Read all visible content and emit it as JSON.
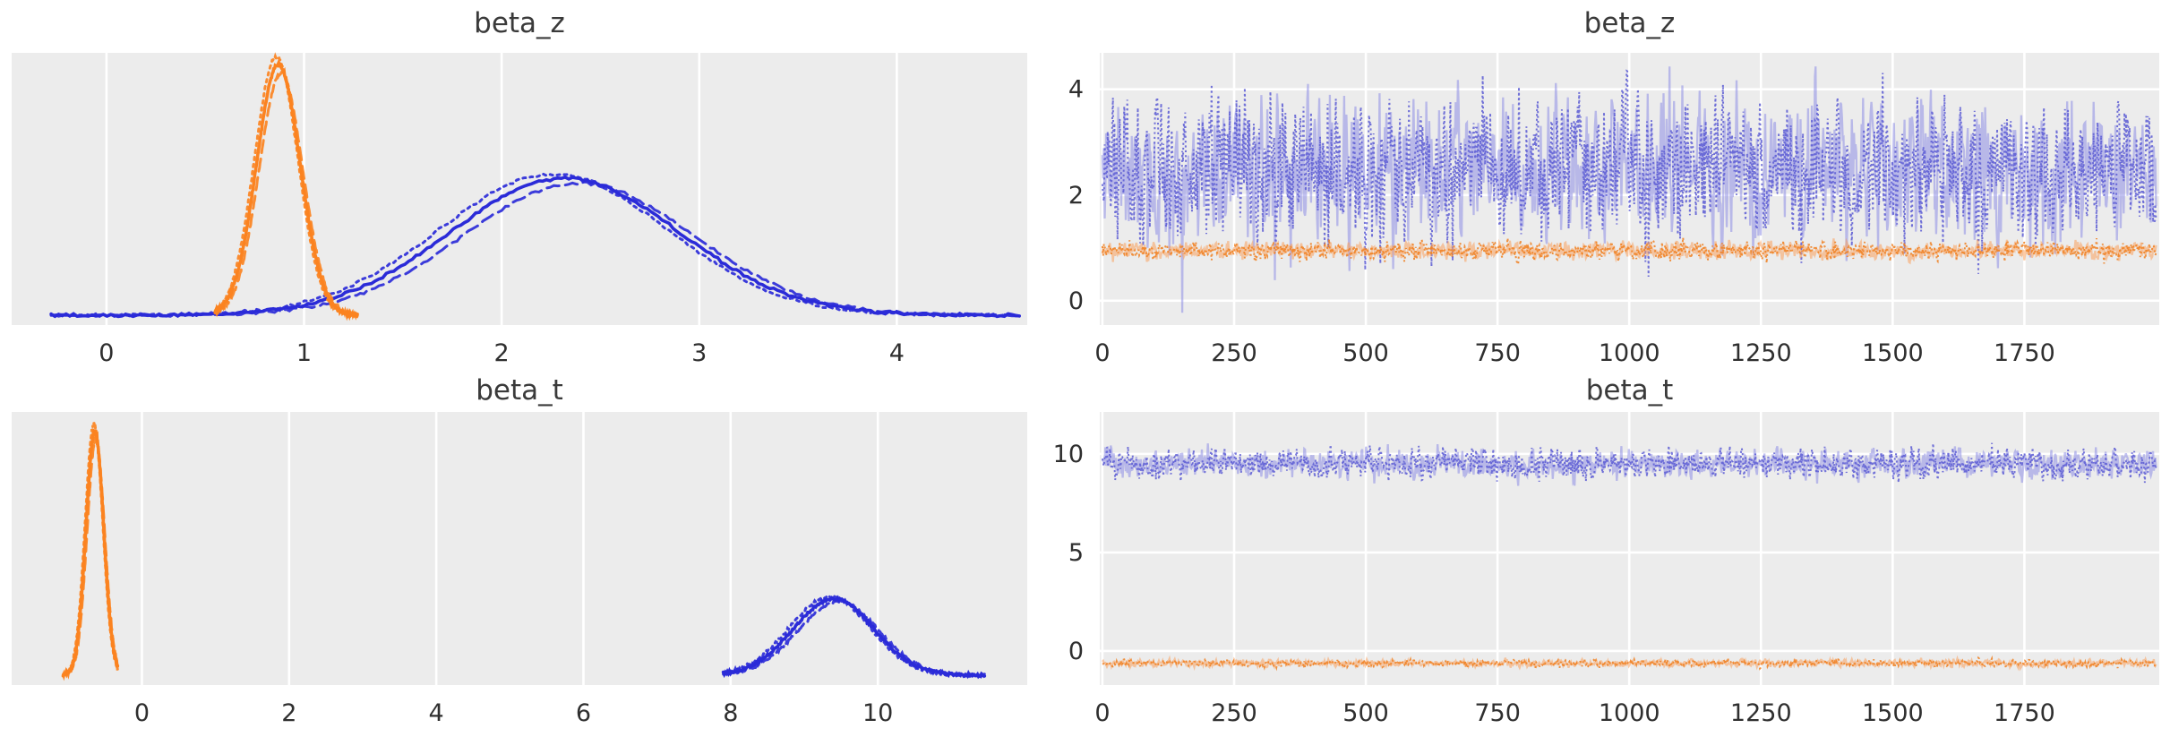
{
  "figure": {
    "background_color": "#ffffff",
    "panel_color": "#ececec",
    "grid_color": "#ffffff",
    "tick_label_color": "#2f2f2f",
    "title_color": "#3a3a3a"
  },
  "chart_data": [
    {
      "id": "beta_z_density",
      "type": "kde",
      "title": "beta_z",
      "xlabel": "",
      "ylabel": "",
      "xlim": [
        -0.48,
        4.66
      ],
      "xticks": [
        0,
        1,
        2,
        3,
        4
      ],
      "grid": "vertical-only",
      "legend": "none",
      "series": [
        {
          "name": "beta_z chain densities (wide posterior)",
          "color": "#2b2bd8",
          "mean": 2.32,
          "sd": 0.58,
          "xstart": -0.28,
          "xend": 4.62,
          "peak_frac": 0.54
        },
        {
          "name": "beta_z chain densities (narrow posterior)",
          "color": "#fb8321",
          "mean": 0.87,
          "sd": 0.11,
          "xstart": 0.55,
          "xend": 1.27,
          "peak_frac": 0.99
        }
      ]
    },
    {
      "id": "beta_z_trace",
      "type": "trace",
      "title": "beta_z",
      "xlabel": "",
      "ylabel": "",
      "xlim": [
        -5,
        2006
      ],
      "x_max": 2000,
      "xticks": [
        0,
        250,
        500,
        750,
        1000,
        1250,
        1500,
        1750
      ],
      "ylim": [
        -0.46,
        4.69
      ],
      "yticks": [
        0,
        2,
        4
      ],
      "grid": "both",
      "legend": "none",
      "series": [
        {
          "name": "beta_z sampled trace (blue chains)",
          "colors": [
            "#8e8ee6",
            "#5a5ad4"
          ],
          "mean": 2.5,
          "amp": 1.05,
          "smooth": 0.3,
          "seed": 11,
          "spike_p": 0.012,
          "spike_mag": -1.7
        },
        {
          "name": "beta_z sampled trace (orange chains)",
          "colors": [
            "#f9a05c",
            "#f07f1f"
          ],
          "mean": 0.95,
          "amp": 0.13,
          "smooth": 0.3,
          "seed": 21,
          "spike_p": 0,
          "spike_mag": 0
        }
      ]
    },
    {
      "id": "beta_t_density",
      "type": "kde",
      "title": "beta_t",
      "xlabel": "",
      "ylabel": "",
      "xlim": [
        -1.77,
        12.03
      ],
      "xticks": [
        0,
        2,
        4,
        6,
        8,
        10
      ],
      "grid": "vertical-only",
      "legend": "none",
      "series": [
        {
          "name": "beta_t chain densities (posterior near 9.4)",
          "color": "#2b2bd8",
          "mean": 9.4,
          "sd": 0.55,
          "xstart": 7.9,
          "xend": 11.45,
          "peak_frac": 0.3
        },
        {
          "name": "beta_t chain densities (posterior near -0.64)",
          "color": "#fb8321",
          "mean": -0.64,
          "sd": 0.12,
          "xstart": -1.07,
          "xend": -0.33,
          "peak_frac": 0.96
        }
      ]
    },
    {
      "id": "beta_t_trace",
      "type": "trace",
      "title": "beta_t",
      "xlabel": "",
      "ylabel": "",
      "xlim": [
        -5,
        2006
      ],
      "x_max": 2000,
      "xticks": [
        0,
        250,
        500,
        750,
        1000,
        1250,
        1500,
        1750
      ],
      "ylim": [
        -1.73,
        12.13
      ],
      "yticks": [
        0,
        5,
        10
      ],
      "grid": "both",
      "legend": "none",
      "series": [
        {
          "name": "beta_t sampled trace (blue chains)",
          "colors": [
            "#8e8ee6",
            "#5a5ad4"
          ],
          "mean": 9.5,
          "amp": 0.58,
          "smooth": 0.3,
          "seed": 31,
          "spike_p": 0.004,
          "spike_mag": 1.1
        },
        {
          "name": "beta_t sampled trace (orange chains)",
          "colors": [
            "#f9a05c",
            "#f07f1f"
          ],
          "mean": -0.62,
          "amp": 0.14,
          "smooth": 0.3,
          "seed": 41,
          "spike_p": 0,
          "spike_mag": 0
        }
      ]
    }
  ]
}
